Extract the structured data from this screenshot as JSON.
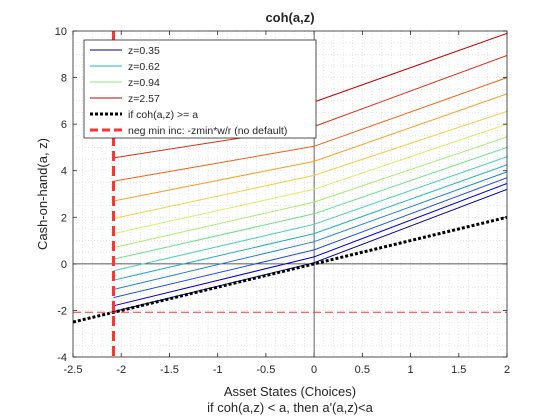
{
  "chart_data": {
    "type": "line",
    "title": "coh(a,z)",
    "xlabel": "Asset States (Choices)",
    "xlabel2": "if coh(a,z) < a, then a'(a,z)<a",
    "ylabel": "Cash-on-hand(a, z)",
    "xlim": [
      -2.5,
      2
    ],
    "ylim": [
      -4,
      10
    ],
    "xticks": [
      -2.5,
      -2,
      -1.5,
      -1,
      -0.5,
      0,
      0.5,
      1,
      1.5,
      2
    ],
    "yticks": [
      -4,
      -2,
      0,
      2,
      4,
      6,
      8,
      10
    ],
    "xtick_labels": [
      "-2.5",
      "-2",
      "-1.5",
      "-1",
      "-0.5",
      "0",
      "0.5",
      "1",
      "1.5",
      "2"
    ],
    "ytick_labels": [
      "-4",
      "-2",
      "0",
      "2",
      "4",
      "6",
      "8",
      "10"
    ],
    "grid": "minor dotted",
    "legend_position": "top-left",
    "legend": [
      {
        "label": "z=0.35",
        "color": "#00008b",
        "style": "solid"
      },
      {
        "label": "z=0.62",
        "color": "#22b0c0",
        "style": "solid"
      },
      {
        "label": "z=0.94",
        "color": "#8ee87e",
        "style": "solid"
      },
      {
        "label": "z=2.57",
        "color": "#c00000",
        "style": "solid"
      },
      {
        "label": "if coh(a,z) >= a",
        "color": "#000000",
        "style": "dotted-thick"
      },
      {
        "label": "neg min inc: -zmin*w/r (no default)",
        "color": "#ff3333",
        "style": "dashed-thick"
      }
    ],
    "x": [
      -2.08,
      0,
      2
    ],
    "series": [
      {
        "color": "#00008b",
        "values": [
          -2.05,
          0.05,
          3.2
        ]
      },
      {
        "color": "#0000cd",
        "values": [
          -1.8,
          0.3,
          3.45
        ]
      },
      {
        "color": "#1a4fd6",
        "values": [
          -1.45,
          0.6,
          3.7
        ]
      },
      {
        "color": "#1e7fd0",
        "values": [
          -1.1,
          0.95,
          3.95
        ]
      },
      {
        "color": "#22b0c0",
        "values": [
          -0.7,
          1.3,
          4.25
        ]
      },
      {
        "color": "#40cfb0",
        "values": [
          -0.3,
          1.7,
          4.6
        ]
      },
      {
        "color": "#6ee08a",
        "values": [
          0.2,
          2.15,
          5.0
        ]
      },
      {
        "color": "#a8ec6e",
        "values": [
          0.7,
          2.65,
          5.45
        ]
      },
      {
        "color": "#d8f060",
        "values": [
          1.3,
          3.2,
          6.0
        ]
      },
      {
        "color": "#f0d040",
        "values": [
          1.95,
          3.8,
          6.55
        ]
      },
      {
        "color": "#f5a020",
        "values": [
          2.7,
          4.4,
          7.3
        ]
      },
      {
        "color": "#f06010",
        "values": [
          3.55,
          5.05,
          8.0
        ]
      },
      {
        "color": "#dc2a10",
        "values": [
          4.55,
          5.9,
          8.95
        ]
      },
      {
        "color": "#c00000",
        "values": [
          5.65,
          6.95,
          9.9
        ]
      }
    ],
    "coh_ge_a_line": {
      "x": [
        -2.5,
        2
      ],
      "values": [
        -2.5,
        2
      ]
    },
    "neg_min_inc": -2.08
  }
}
